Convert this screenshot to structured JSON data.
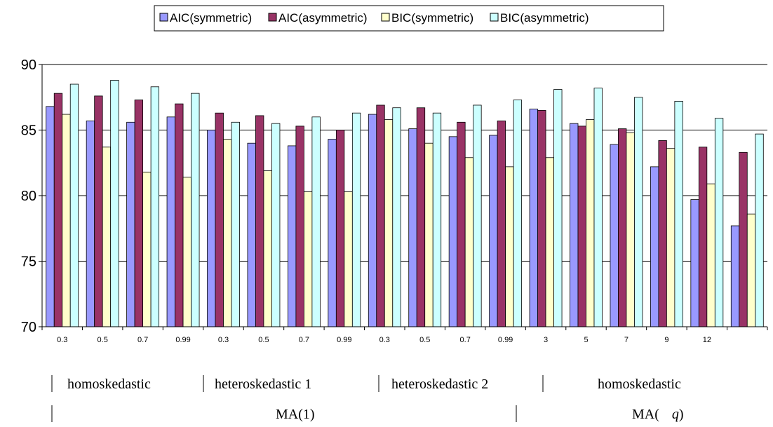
{
  "chart_data": {
    "type": "bar",
    "categories": [
      "0.3",
      "0.5",
      "0.7",
      "0.99",
      "0.3",
      "0.5",
      "0.7",
      "0.99",
      "0.3",
      "0.5",
      "0.7",
      "0.99",
      "3",
      "5",
      "7",
      "9",
      "12",
      ""
    ],
    "series": [
      {
        "name": "AIC(symmetric)",
        "color": "#9999ff",
        "values": [
          86.8,
          85.7,
          85.6,
          86.0,
          85.0,
          84.0,
          83.8,
          84.3,
          86.2,
          85.1,
          84.5,
          84.6,
          86.6,
          85.5,
          83.9,
          82.2,
          79.7,
          77.7
        ]
      },
      {
        "name": "AIC(asymmetric)",
        "color": "#993366",
        "values": [
          87.8,
          87.6,
          87.3,
          87.0,
          86.3,
          86.1,
          85.3,
          85.0,
          86.9,
          86.7,
          85.6,
          85.7,
          86.5,
          85.3,
          85.1,
          84.2,
          83.7,
          83.3
        ]
      },
      {
        "name": "BIC(symmetric)",
        "color": "#ffffcc",
        "values": [
          86.2,
          83.7,
          81.8,
          81.4,
          84.3,
          81.9,
          80.3,
          80.3,
          85.8,
          84.0,
          82.9,
          82.2,
          82.9,
          85.8,
          84.8,
          83.6,
          80.9,
          78.6
        ]
      },
      {
        "name": "BIC(asymmetric)",
        "color": "#ccffff",
        "values": [
          88.5,
          88.8,
          88.3,
          87.8,
          85.6,
          85.5,
          86.0,
          86.3,
          86.7,
          86.3,
          86.9,
          87.3,
          88.1,
          88.2,
          87.5,
          87.2,
          85.9,
          84.7
        ]
      }
    ],
    "ylim": [
      70,
      90
    ],
    "yticks": [
      "70",
      "75",
      "80",
      "85",
      "90"
    ],
    "legend_position": "top-center",
    "grid": true,
    "group_labels_row1": [
      "homoskedastic",
      "heteroskedastic 1",
      "heteroskedastic 2",
      "homoskedastic"
    ],
    "group_labels_row2": [
      "MA(1)",
      "MA(",
      "q",
      ")"
    ]
  }
}
